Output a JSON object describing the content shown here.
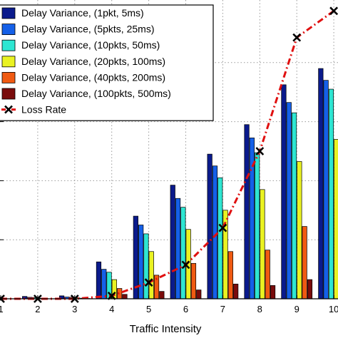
{
  "chart_data": {
    "type": "bar",
    "xlabel": "Traffic Intensity",
    "categories": [
      "1",
      "2",
      "3",
      "4",
      "5",
      "6",
      "7",
      "8",
      "9",
      "10"
    ],
    "grid": true,
    "legend_position": "top-left",
    "series": [
      {
        "name": "Delay Variance, (1pkt, 5ms)",
        "type": "bar",
        "color": "#0a1a8c",
        "values": [
          0.01,
          0.08,
          0.1,
          1.25,
          2.8,
          3.85,
          4.9,
          5.9,
          7.25,
          7.8
        ]
      },
      {
        "name": "Delay Variance, (5pkts, 25ms)",
        "type": "bar",
        "color": "#1560e8",
        "values": [
          0.0,
          0.05,
          0.06,
          1.0,
          2.5,
          3.4,
          4.5,
          5.45,
          6.65,
          7.4
        ]
      },
      {
        "name": "Delay Variance, (10pkts, 50ms)",
        "type": "bar",
        "color": "#2ee6d2",
        "values": [
          0.0,
          0.04,
          0.05,
          0.9,
          2.2,
          3.1,
          4.1,
          4.95,
          6.3,
          7.1
        ]
      },
      {
        "name": "Delay Variance, (20pkts, 100ms)",
        "type": "bar",
        "color": "#eaf222",
        "values": [
          0.0,
          0.02,
          0.03,
          0.65,
          1.6,
          2.35,
          3.0,
          3.7,
          4.65,
          5.4
        ]
      },
      {
        "name": "Delay Variance, (40pkts, 200ms)",
        "type": "bar",
        "color": "#f05a12",
        "values": [
          0.0,
          0.01,
          0.02,
          0.35,
          0.8,
          1.2,
          1.6,
          1.65,
          2.45,
          2.95
        ]
      },
      {
        "name": "Delay Variance, (100pkts, 500ms)",
        "type": "bar",
        "color": "#7a0c0c",
        "values": [
          0.0,
          0.0,
          0.01,
          0.15,
          0.25,
          0.3,
          0.5,
          0.45,
          0.65,
          0.8
        ]
      },
      {
        "name": "Loss Rate",
        "type": "line",
        "color": "#e01010",
        "marker": "x",
        "values": [
          0.0,
          0.0,
          0.0,
          0.1,
          0.55,
          1.15,
          2.4,
          5.0,
          8.85,
          9.75
        ]
      }
    ]
  }
}
